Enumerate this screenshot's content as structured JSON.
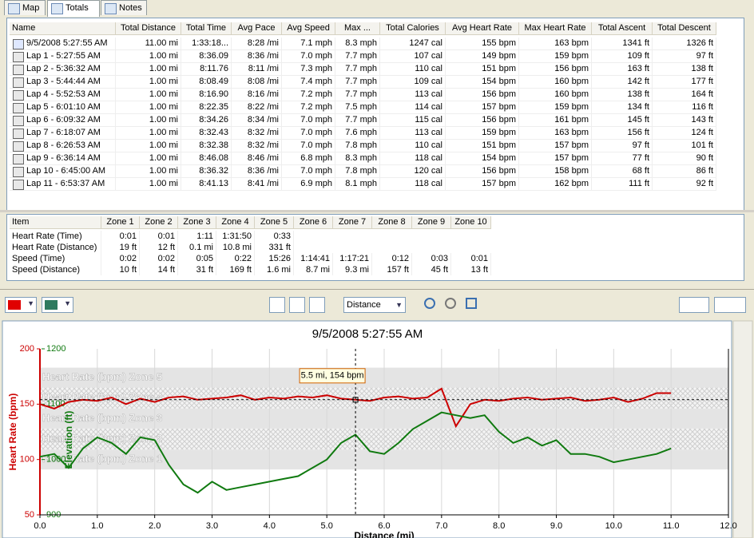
{
  "tabs": [
    "Map",
    "Totals",
    "Notes"
  ],
  "laps_table": {
    "columns": [
      "Name",
      "Total Distance",
      "Total Time",
      "Avg Pace",
      "Avg Speed",
      "Max ...",
      "Total Calories",
      "Avg Heart Rate",
      "Max Heart Rate",
      "Total Ascent",
      "Total Descent"
    ],
    "rows": [
      [
        "9/5/2008 5:27:55 AM",
        "11.00 mi",
        "1:33:18...",
        "8:28 /mi",
        "7.1 mph",
        "8.3 mph",
        "1247 cal",
        "155 bpm",
        "163 bpm",
        "1341 ft",
        "1326 ft"
      ],
      [
        "Lap 1 - 5:27:55 AM",
        "1.00 mi",
        "8:36.09",
        "8:36 /mi",
        "7.0 mph",
        "7.7 mph",
        "107 cal",
        "149 bpm",
        "159 bpm",
        "109 ft",
        "97 ft"
      ],
      [
        "Lap 2 - 5:36:32 AM",
        "1.00 mi",
        "8:11.76",
        "8:11 /mi",
        "7.3 mph",
        "7.7 mph",
        "110 cal",
        "151 bpm",
        "156 bpm",
        "163 ft",
        "138 ft"
      ],
      [
        "Lap 3 - 5:44:44 AM",
        "1.00 mi",
        "8:08.49",
        "8:08 /mi",
        "7.4 mph",
        "7.7 mph",
        "109 cal",
        "154 bpm",
        "160 bpm",
        "142 ft",
        "177 ft"
      ],
      [
        "Lap 4 - 5:52:53 AM",
        "1.00 mi",
        "8:16.90",
        "8:16 /mi",
        "7.2 mph",
        "7.7 mph",
        "113 cal",
        "156 bpm",
        "160 bpm",
        "138 ft",
        "164 ft"
      ],
      [
        "Lap 5 - 6:01:10 AM",
        "1.00 mi",
        "8:22.35",
        "8:22 /mi",
        "7.2 mph",
        "7.5 mph",
        "114 cal",
        "157 bpm",
        "159 bpm",
        "134 ft",
        "116 ft"
      ],
      [
        "Lap 6 - 6:09:32 AM",
        "1.00 mi",
        "8:34.26",
        "8:34 /mi",
        "7.0 mph",
        "7.7 mph",
        "115 cal",
        "156 bpm",
        "161 bpm",
        "145 ft",
        "143 ft"
      ],
      [
        "Lap 7 - 6:18:07 AM",
        "1.00 mi",
        "8:32.43",
        "8:32 /mi",
        "7.0 mph",
        "7.6 mph",
        "113 cal",
        "159 bpm",
        "163 bpm",
        "156 ft",
        "124 ft"
      ],
      [
        "Lap 8 - 6:26:53 AM",
        "1.00 mi",
        "8:32.38",
        "8:32 /mi",
        "7.0 mph",
        "7.8 mph",
        "110 cal",
        "151 bpm",
        "157 bpm",
        "97 ft",
        "101 ft"
      ],
      [
        "Lap 9 - 6:36:14 AM",
        "1.00 mi",
        "8:46.08",
        "8:46 /mi",
        "6.8 mph",
        "8.3 mph",
        "118 cal",
        "154 bpm",
        "157 bpm",
        "77 ft",
        "90 ft"
      ],
      [
        "Lap 10 - 6:45:00 AM",
        "1.00 mi",
        "8:36.32",
        "8:36 /mi",
        "7.0 mph",
        "7.8 mph",
        "120 cal",
        "156 bpm",
        "158 bpm",
        "68 ft",
        "86 ft"
      ],
      [
        "Lap 11 - 6:53:37 AM",
        "1.00 mi",
        "8:41.13",
        "8:41 /mi",
        "6.9 mph",
        "8.1 mph",
        "118 cal",
        "157 bpm",
        "162 bpm",
        "111 ft",
        "92 ft"
      ]
    ]
  },
  "zones_table": {
    "columns": [
      "Item",
      "Zone 1",
      "Zone 2",
      "Zone 3",
      "Zone 4",
      "Zone 5",
      "Zone 6",
      "Zone 7",
      "Zone 8",
      "Zone 9",
      "Zone 10"
    ],
    "rows": [
      [
        "Heart Rate (Time)",
        "0:01",
        "0:01",
        "1:11",
        "1:31:50",
        "0:33",
        null,
        null,
        null,
        null,
        null
      ],
      [
        "Heart Rate (Distance)",
        "19 ft",
        "12 ft",
        "0.1 mi",
        "10.8 mi",
        "331 ft",
        null,
        null,
        null,
        null,
        null
      ],
      [
        "Speed (Time)",
        "0:02",
        "0:02",
        "0:05",
        "0:22",
        "15:26",
        "1:14:41",
        "1:17:21",
        "0:12",
        "0:03",
        "0:01"
      ],
      [
        "Speed (Distance)",
        "10 ft",
        "14 ft",
        "31 ft",
        "169 ft",
        "1.6 mi",
        "8.7 mi",
        "9.3 mi",
        "157 ft",
        "45 ft",
        "13 ft"
      ]
    ]
  },
  "toolbar": {
    "x_axis": "Distance"
  },
  "chart_data": {
    "type": "line",
    "title": "9/5/2008 5:27:55 AM",
    "xlabel": "Distance (mi)",
    "ylabel": "Heart Rate (bpm)",
    "y2label": "Elevation (ft)",
    "x": [
      0,
      0.25,
      0.5,
      0.75,
      1,
      1.25,
      1.5,
      1.75,
      2,
      2.25,
      2.5,
      2.75,
      3,
      3.25,
      3.5,
      3.75,
      4,
      4.25,
      4.5,
      4.75,
      5,
      5.25,
      5.5,
      5.75,
      6,
      6.25,
      6.5,
      6.75,
      7,
      7.25,
      7.5,
      7.75,
      8,
      8.25,
      8.5,
      8.75,
      9,
      9.25,
      9.5,
      9.75,
      10,
      10.25,
      10.5,
      10.75,
      11
    ],
    "series": [
      {
        "color": "#cc0000",
        "values": [
          150,
          146,
          152,
          154,
          153,
          156,
          150,
          155,
          152,
          156,
          157,
          154,
          155,
          156,
          158,
          154,
          156,
          155,
          157,
          156,
          158,
          155,
          154,
          153,
          156,
          157,
          155,
          156,
          164,
          130,
          150,
          154,
          153,
          155,
          156,
          154,
          155,
          156,
          153,
          154,
          156,
          152,
          155,
          160,
          160
        ]
      },
      {
        "color": "#107a10",
        "axis": "y2",
        "values": [
          1005,
          1010,
          985,
          1020,
          1040,
          1030,
          1010,
          1040,
          1035,
          990,
          955,
          940,
          960,
          945,
          950,
          955,
          960,
          965,
          970,
          985,
          1000,
          1030,
          1045,
          1015,
          1010,
          1030,
          1055,
          1070,
          1085,
          1080,
          1075,
          1080,
          1050,
          1030,
          1040,
          1025,
          1035,
          1010,
          1010,
          1005,
          995,
          1000,
          1005,
          1010,
          1020
        ]
      }
    ],
    "xlim": [
      0,
      12
    ],
    "xticks": [
      {
        "value": 0,
        "label": "0.0"
      },
      {
        "value": 1,
        "label": "1.0"
      },
      {
        "value": 2,
        "label": "2.0"
      },
      {
        "value": 3,
        "label": "3.0"
      },
      {
        "value": 4,
        "label": "4.0"
      },
      {
        "value": 5,
        "label": "5.0"
      },
      {
        "value": 6,
        "label": "6.0"
      },
      {
        "value": 7,
        "label": "7.0"
      },
      {
        "value": 8,
        "label": "8.0"
      },
      {
        "value": 9,
        "label": "9.0"
      },
      {
        "value": 10,
        "label": "10.0"
      },
      {
        "value": 11,
        "label": "11.0"
      },
      {
        "value": 12,
        "label": "12.0"
      }
    ],
    "ylim": [
      50,
      200
    ],
    "yticks": [
      50,
      100,
      150,
      200
    ],
    "y2lim": [
      900,
      1200
    ],
    "y2ticks": [
      900,
      1000,
      1100,
      1200
    ],
    "grid": true,
    "zones": [
      {
        "label": "Heart Rate (bpm) Zone 1",
        "min": 91,
        "max": 109,
        "hatched": false
      },
      {
        "label": "Heart Rate (bpm) Zone 2",
        "min": 109,
        "max": 128,
        "hatched": true
      },
      {
        "label": "Heart Rate (bpm) Zone 3",
        "min": 128,
        "max": 146,
        "hatched": false
      },
      {
        "label": "Heart Rate (bpm) Zone 4",
        "min": 146,
        "max": 165,
        "hatched": true
      },
      {
        "label": "Heart Rate (bpm) Zone 5",
        "min": 165,
        "max": 183,
        "hatched": false
      }
    ],
    "cursor": {
      "x": 5.5,
      "y": 154,
      "label": "5.5 mi, 154 bpm"
    }
  }
}
